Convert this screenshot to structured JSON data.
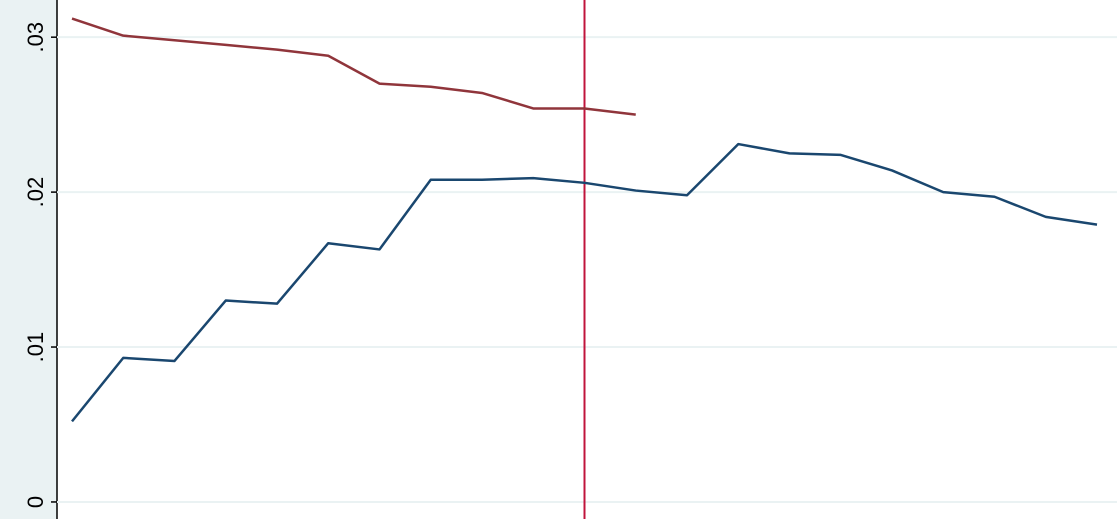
{
  "chart_data": {
    "type": "line",
    "categories": [
      null,
      null,
      null,
      null,
      null,
      null,
      null,
      null,
      null,
      null,
      null,
      null,
      null,
      null,
      null,
      null,
      null,
      null,
      null,
      null,
      null
    ],
    "series": [
      {
        "color": "#1a476f",
        "values": [
          0.0052,
          0.0093,
          0.0091,
          0.013,
          0.0128,
          0.0167,
          0.0163,
          0.0208,
          0.0208,
          0.0209,
          0.0206,
          0.0201,
          0.0198,
          0.0231,
          0.0225,
          0.0224,
          0.0214,
          0.02,
          0.0197,
          0.0184,
          0.0179
        ]
      },
      {
        "color": "#90353b",
        "values": [
          0.0312,
          0.0301,
          0.0298,
          0.0295,
          0.0292,
          0.0288,
          0.027,
          0.0268,
          0.0264,
          0.0254,
          0.0254,
          0.025,
          null,
          null,
          null,
          null,
          null,
          null,
          null,
          null,
          null
        ]
      }
    ],
    "xline": 10,
    "xline_color": "#c0143c",
    "ylim": [
      -0.0011,
      0.0324
    ],
    "yticks": [
      0,
      {
        "value": 0.01,
        "label": ".01"
      },
      {
        "value": 0.02,
        "label": ".02"
      },
      {
        "value": 0.03,
        "label": ".03"
      }
    ],
    "grid": true
  }
}
